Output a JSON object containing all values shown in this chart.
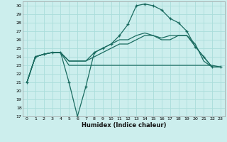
{
  "title": "",
  "xlabel": "Humidex (Indice chaleur)",
  "bg_color": "#cceeed",
  "grid_color": "#aaddda",
  "line_color": "#1a6b60",
  "xlim": [
    -0.5,
    23.5
  ],
  "ylim": [
    17,
    30.5
  ],
  "yticks": [
    17,
    18,
    19,
    20,
    21,
    22,
    23,
    24,
    25,
    26,
    27,
    28,
    29,
    30
  ],
  "xticks": [
    0,
    1,
    2,
    3,
    4,
    5,
    6,
    7,
    8,
    9,
    10,
    11,
    12,
    13,
    14,
    15,
    16,
    17,
    18,
    19,
    20,
    21,
    22,
    23
  ],
  "series": [
    {
      "x": [
        0,
        1,
        2,
        3,
        4,
        5,
        6,
        7,
        8,
        9,
        10,
        11,
        12,
        13,
        14,
        15,
        16,
        17,
        18,
        19,
        20,
        21,
        22,
        23
      ],
      "y": [
        21,
        24,
        24.3,
        24.5,
        24.5,
        21,
        17,
        20.5,
        24.5,
        25,
        25.5,
        26.5,
        27.8,
        30.0,
        30.2,
        30,
        29.5,
        28.5,
        28,
        27,
        25.2,
        24.0,
        22.8,
        22.8
      ],
      "marker": true
    },
    {
      "x": [
        0,
        1,
        2,
        3,
        4,
        5,
        6,
        7,
        8,
        9,
        10,
        11,
        12,
        13,
        14,
        15,
        16,
        17,
        18,
        19,
        20,
        21,
        22,
        23
      ],
      "y": [
        21,
        24,
        24.3,
        24.5,
        24.5,
        23,
        23,
        23,
        23,
        23,
        23,
        23,
        23,
        23,
        23,
        23,
        23,
        23,
        23,
        23,
        23,
        23,
        23,
        22.8
      ],
      "marker": false
    },
    {
      "x": [
        0,
        1,
        2,
        3,
        4,
        5,
        6,
        7,
        8,
        9,
        10,
        11,
        12,
        13,
        14,
        15,
        16,
        17,
        18,
        19,
        20,
        21,
        22,
        23
      ],
      "y": [
        21,
        24,
        24.3,
        24.5,
        24.5,
        23.5,
        23.5,
        23.5,
        24.0,
        24.5,
        25.0,
        25.5,
        25.5,
        26.0,
        26.5,
        26.5,
        26.0,
        26.0,
        26.5,
        26.5,
        25.5,
        23.5,
        22.8,
        22.8
      ],
      "marker": false
    },
    {
      "x": [
        0,
        1,
        2,
        3,
        4,
        5,
        6,
        7,
        8,
        9,
        10,
        11,
        12,
        13,
        14,
        15,
        16,
        17,
        18,
        19,
        20,
        21,
        22,
        23
      ],
      "y": [
        21,
        24,
        24.3,
        24.5,
        24.5,
        23.5,
        23.5,
        23.5,
        24.5,
        25.0,
        25.5,
        26.0,
        26.0,
        26.5,
        26.8,
        26.5,
        26.2,
        26.5,
        26.5,
        26.5,
        25.2,
        24.0,
        22.8,
        22.8
      ],
      "marker": false
    }
  ]
}
